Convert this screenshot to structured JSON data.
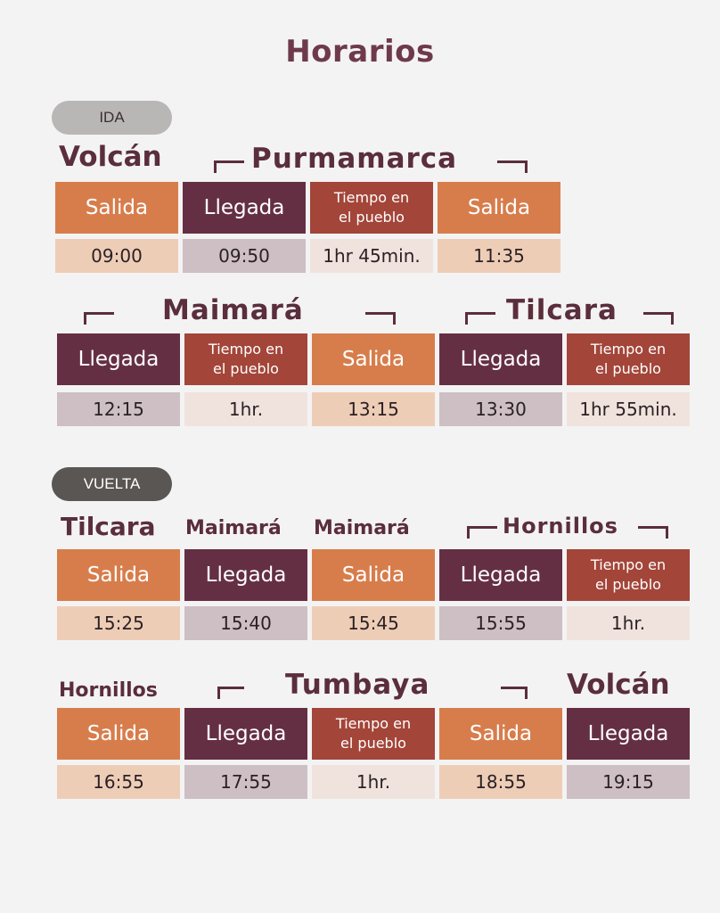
{
  "title": "Horarios",
  "labels": {
    "salida": "Salida",
    "llegada": "Llegada",
    "tiempo": "Tiempo en\nel pueblo"
  },
  "ida": {
    "badge": "IDA",
    "row1": {
      "towns": [
        "Volcán",
        "Purmamarca"
      ],
      "times": [
        "09:00",
        "09:50",
        "1hr 45min.",
        "11:35"
      ]
    },
    "row2": {
      "towns": [
        "Maimará",
        "Tilcara"
      ],
      "times": [
        "12:15",
        "1hr.",
        "13:15",
        "13:30",
        "1hr 55min."
      ]
    }
  },
  "vuelta": {
    "badge": "VUELTA",
    "row1": {
      "towns": [
        "Tilcara",
        "Maimará",
        "Maimará",
        "Hornillos"
      ],
      "times": [
        "15:25",
        "15:40",
        "15:45",
        "15:55",
        "1hr."
      ]
    },
    "row2": {
      "towns": [
        "Hornillos",
        "Tumbaya",
        "Volcán"
      ],
      "times": [
        "16:55",
        "17:55",
        "1hr.",
        "18:55",
        "19:15"
      ]
    }
  },
  "colors": {
    "salida": "#d77d4c",
    "llegada": "#652f43",
    "tiempo": "#a34539",
    "title": "#6e3a4b"
  }
}
